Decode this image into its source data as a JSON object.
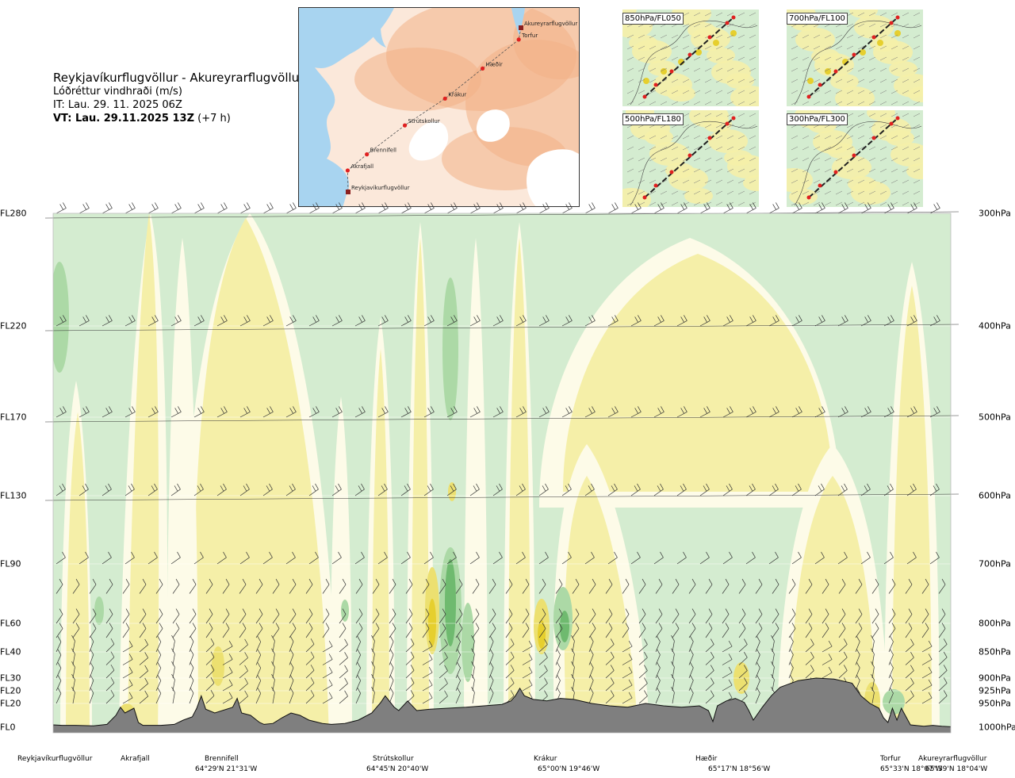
{
  "header": {
    "route": "Reykjavíkurflugvöllur - Akureyrarflugvöllur",
    "subtitle": "Lóðréttur vindhraði (m/s)",
    "issue_time": "IT: Lau. 29. 11. 2025 06Z",
    "valid_time": "VT: Lau. 29.11.2025 13Z",
    "lead": "(+7 h)"
  },
  "route_map": {
    "waypoints": [
      {
        "name": "Akureyrarflugvöllur",
        "lon": -18.07,
        "lat": 65.66
      },
      {
        "name": "Torfur",
        "lon": -18.12,
        "lat": 65.55
      },
      {
        "name": "Hæðir",
        "lon": -18.93,
        "lat": 65.28
      },
      {
        "name": "Krákur",
        "lon": -19.77,
        "lat": 65.0
      },
      {
        "name": "Strútskollur",
        "lon": -20.67,
        "lat": 64.75
      },
      {
        "name": "Brennifell",
        "lon": -21.52,
        "lat": 64.48
      },
      {
        "name": "Akrafjall",
        "lon": -21.95,
        "lat": 64.33
      },
      {
        "name": "Reykjavíkurflugvöllur",
        "lon": -21.94,
        "lat": 64.13
      }
    ],
    "colors": {
      "sea": "#a8d4f0",
      "land_low": "#fbe8da",
      "land_high": "#f2b187",
      "ice": "#ffffff",
      "route": "#e02020"
    }
  },
  "mini_maps": [
    {
      "label": "850hPa/FL050"
    },
    {
      "label": "700hPa/FL100"
    },
    {
      "label": "500hPa/FL180"
    },
    {
      "label": "300hPa/FL300"
    }
  ],
  "chart_data": {
    "type": "heatmap",
    "title": "Lóðréttur vindhraði (m/s)",
    "x_unit": "distance along route (fraction)",
    "y_axis_left": [
      "FL280",
      "FL220",
      "FL170",
      "FL130",
      "FL90",
      "FL60",
      "FL40",
      "FL30",
      "FL20",
      "FL20",
      "FL0"
    ],
    "y_axis_right": [
      "300hPa",
      "400hPa",
      "500hPa",
      "600hPa",
      "700hPa",
      "800hPa",
      "850hPa",
      "900hPa",
      "925hPa",
      "950hPa",
      "1000hPa"
    ],
    "pressure_levels_hpa": [
      300,
      400,
      500,
      600,
      700,
      800,
      850,
      900,
      925,
      950,
      1000
    ],
    "ylim_hpa": [
      1000,
      300
    ],
    "waypoints": [
      {
        "name": "Reykjavíkurflugvöllur",
        "coord": "",
        "frac": 0.0
      },
      {
        "name": "Akrafjall",
        "coord": "",
        "frac": 0.08
      },
      {
        "name": "Brennifell",
        "coord": "64°29'N 21°31'W",
        "frac": 0.18
      },
      {
        "name": "Strútskollur",
        "coord": "64°45'N 20°40'W",
        "frac": 0.37
      },
      {
        "name": "Krákur",
        "coord": "65°00'N 19°46'W",
        "frac": 0.52
      },
      {
        "name": "Hæðir",
        "coord": "65°17'N 18°56'W",
        "frac": 0.74
      },
      {
        "name": "Torfur",
        "coord": "65°33'N 18°07'W",
        "frac": 0.95
      },
      {
        "name": "Akureyrarflugvöllur",
        "coord": "65°39'N 18°04'W",
        "frac": 1.0
      }
    ],
    "legend_colors": {
      "downdraft_weak": "#f5efa8",
      "downdraft_moderate": "#ece070",
      "downdraft_strong": "#e6cf2e",
      "near_zero": "#fdfbe8",
      "updraft_weak": "#d4ecd0",
      "updraft_moderate": "#acd9a6",
      "updraft_strong": "#6fba6f",
      "terrain": "#7f7f7f"
    },
    "terrain_profile_hpa": [
      [
        0.0,
        995
      ],
      [
        0.01,
        996
      ],
      [
        0.025,
        996
      ],
      [
        0.045,
        997
      ],
      [
        0.06,
        994
      ],
      [
        0.07,
        975
      ],
      [
        0.075,
        958
      ],
      [
        0.08,
        970
      ],
      [
        0.09,
        960
      ],
      [
        0.095,
        990
      ],
      [
        0.1,
        996
      ],
      [
        0.12,
        996
      ],
      [
        0.135,
        994
      ],
      [
        0.145,
        985
      ],
      [
        0.155,
        978
      ],
      [
        0.16,
        960
      ],
      [
        0.165,
        935
      ],
      [
        0.17,
        962
      ],
      [
        0.18,
        970
      ],
      [
        0.2,
        958
      ],
      [
        0.205,
        940
      ],
      [
        0.21,
        970
      ],
      [
        0.22,
        975
      ],
      [
        0.23,
        990
      ],
      [
        0.235,
        994
      ],
      [
        0.245,
        992
      ],
      [
        0.255,
        980
      ],
      [
        0.265,
        970
      ],
      [
        0.275,
        975
      ],
      [
        0.285,
        985
      ],
      [
        0.3,
        992
      ],
      [
        0.31,
        994
      ],
      [
        0.325,
        992
      ],
      [
        0.34,
        985
      ],
      [
        0.355,
        970
      ],
      [
        0.365,
        948
      ],
      [
        0.37,
        935
      ],
      [
        0.38,
        958
      ],
      [
        0.385,
        965
      ],
      [
        0.395,
        945
      ],
      [
        0.405,
        965
      ],
      [
        0.42,
        962
      ],
      [
        0.44,
        960
      ],
      [
        0.46,
        958
      ],
      [
        0.48,
        955
      ],
      [
        0.5,
        952
      ],
      [
        0.51,
        945
      ],
      [
        0.515,
        935
      ],
      [
        0.52,
        920
      ],
      [
        0.525,
        935
      ],
      [
        0.535,
        942
      ],
      [
        0.55,
        945
      ],
      [
        0.565,
        940
      ],
      [
        0.58,
        942
      ],
      [
        0.6,
        950
      ],
      [
        0.62,
        955
      ],
      [
        0.64,
        958
      ],
      [
        0.66,
        950
      ],
      [
        0.68,
        955
      ],
      [
        0.7,
        958
      ],
      [
        0.72,
        955
      ],
      [
        0.73,
        965
      ],
      [
        0.735,
        988
      ],
      [
        0.74,
        955
      ],
      [
        0.75,
        945
      ],
      [
        0.76,
        940
      ],
      [
        0.77,
        948
      ],
      [
        0.775,
        965
      ],
      [
        0.78,
        985
      ],
      [
        0.79,
        958
      ],
      [
        0.8,
        935
      ],
      [
        0.81,
        918
      ],
      [
        0.83,
        905
      ],
      [
        0.85,
        900
      ],
      [
        0.87,
        902
      ],
      [
        0.89,
        910
      ],
      [
        0.9,
        935
      ],
      [
        0.91,
        950
      ],
      [
        0.92,
        960
      ],
      [
        0.925,
        980
      ],
      [
        0.93,
        990
      ],
      [
        0.935,
        960
      ],
      [
        0.94,
        985
      ],
      [
        0.945,
        960
      ],
      [
        0.955,
        995
      ],
      [
        0.97,
        998
      ],
      [
        0.98,
        996
      ],
      [
        0.99,
        998
      ],
      [
        1.0,
        999
      ]
    ],
    "wind_barb_rows_hpa": [
      300,
      400,
      500,
      600,
      700,
      750,
      800,
      825,
      850,
      875,
      900,
      925,
      950
    ]
  }
}
